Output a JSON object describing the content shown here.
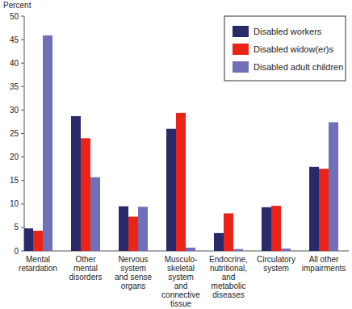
{
  "chart_data": {
    "type": "bar",
    "y_label": "Percent",
    "categories": [
      "Mental\nretardation",
      "Other\nmental\ndisorders",
      "Nervous\nsystem\nand sense\norgans",
      "Musculo-\nskeletal\nsystem\nand\nconnective\ntissue",
      "Endocrine,\nnutritional,\nand\nmetabolic\ndiseases",
      "Circulatory\nsystem",
      "All other\nimpairments"
    ],
    "series": [
      {
        "name": "Disabled workers",
        "color": "#2a2a6a",
        "values": [
          4.8,
          28.7,
          9.5,
          26,
          3.8,
          9.3,
          17.9
        ]
      },
      {
        "name": "Disabled widow(er)s",
        "color": "#ec2418",
        "values": [
          4.3,
          24,
          7.3,
          29.4,
          8,
          9.6,
          17.5
        ]
      },
      {
        "name": "Disabled adult children",
        "color": "#7070b8",
        "values": [
          45.9,
          15.7,
          9.4,
          0.7,
          0.4,
          0.5,
          27.4
        ]
      }
    ],
    "ylim": [
      0,
      50
    ],
    "yticks": [
      0,
      5,
      10,
      15,
      20,
      25,
      30,
      35,
      40,
      45,
      50
    ],
    "grid": false,
    "legend": "top-right"
  }
}
